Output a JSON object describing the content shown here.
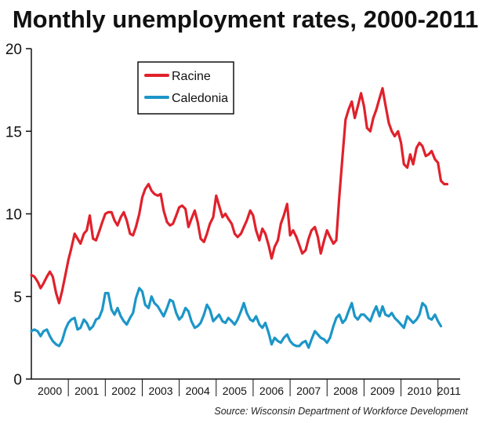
{
  "chart_data": {
    "type": "line",
    "title": "Monthly unemployment rates, 2000-2011",
    "source": "Source: Wisconsin Department of Workforce Development",
    "ylim": [
      0,
      20
    ],
    "yticks": [
      0,
      5,
      10,
      15,
      20
    ],
    "xlim": [
      2000,
      2011.6
    ],
    "year_labels": [
      "2000",
      "2001",
      "2002",
      "2003",
      "2004",
      "2005",
      "2006",
      "2007",
      "2008",
      "2009",
      "2010",
      "2011"
    ],
    "grid": false,
    "legend": "top-left",
    "series": [
      {
        "name": "Racine",
        "color": "#e0212b",
        "points": [
          [
            2000.0,
            6.3
          ],
          [
            2000.08,
            6.2
          ],
          [
            2000.17,
            5.9
          ],
          [
            2000.25,
            5.5
          ],
          [
            2000.33,
            5.8
          ],
          [
            2000.42,
            6.2
          ],
          [
            2000.5,
            6.5
          ],
          [
            2000.58,
            6.2
          ],
          [
            2000.67,
            5.2
          ],
          [
            2000.75,
            4.6
          ],
          [
            2000.83,
            5.3
          ],
          [
            2000.92,
            6.3
          ],
          [
            2001.0,
            7.2
          ],
          [
            2001.08,
            7.9
          ],
          [
            2001.17,
            8.8
          ],
          [
            2001.25,
            8.5
          ],
          [
            2001.33,
            8.2
          ],
          [
            2001.42,
            8.8
          ],
          [
            2001.5,
            9.0
          ],
          [
            2001.58,
            9.9
          ],
          [
            2001.67,
            8.5
          ],
          [
            2001.75,
            8.4
          ],
          [
            2001.83,
            8.9
          ],
          [
            2001.92,
            9.5
          ],
          [
            2002.0,
            10.0
          ],
          [
            2002.08,
            10.1
          ],
          [
            2002.17,
            10.1
          ],
          [
            2002.25,
            9.6
          ],
          [
            2002.33,
            9.3
          ],
          [
            2002.42,
            9.8
          ],
          [
            2002.5,
            10.1
          ],
          [
            2002.58,
            9.6
          ],
          [
            2002.67,
            8.8
          ],
          [
            2002.75,
            8.7
          ],
          [
            2002.83,
            9.2
          ],
          [
            2002.92,
            10.0
          ],
          [
            2003.0,
            11.0
          ],
          [
            2003.08,
            11.5
          ],
          [
            2003.17,
            11.8
          ],
          [
            2003.25,
            11.4
          ],
          [
            2003.33,
            11.2
          ],
          [
            2003.42,
            11.1
          ],
          [
            2003.5,
            11.2
          ],
          [
            2003.58,
            10.2
          ],
          [
            2003.67,
            9.5
          ],
          [
            2003.75,
            9.3
          ],
          [
            2003.83,
            9.4
          ],
          [
            2003.92,
            9.9
          ],
          [
            2004.0,
            10.4
          ],
          [
            2004.08,
            10.5
          ],
          [
            2004.17,
            10.3
          ],
          [
            2004.25,
            9.2
          ],
          [
            2004.33,
            9.7
          ],
          [
            2004.42,
            10.2
          ],
          [
            2004.5,
            9.5
          ],
          [
            2004.58,
            8.5
          ],
          [
            2004.67,
            8.3
          ],
          [
            2004.75,
            8.8
          ],
          [
            2004.83,
            9.4
          ],
          [
            2004.92,
            9.8
          ],
          [
            2005.0,
            11.1
          ],
          [
            2005.08,
            10.5
          ],
          [
            2005.17,
            9.8
          ],
          [
            2005.25,
            10.0
          ],
          [
            2005.33,
            9.7
          ],
          [
            2005.42,
            9.4
          ],
          [
            2005.5,
            8.8
          ],
          [
            2005.58,
            8.6
          ],
          [
            2005.67,
            8.8
          ],
          [
            2005.75,
            9.2
          ],
          [
            2005.83,
            9.6
          ],
          [
            2005.92,
            10.2
          ],
          [
            2006.0,
            9.9
          ],
          [
            2006.08,
            9.0
          ],
          [
            2006.17,
            8.4
          ],
          [
            2006.25,
            9.1
          ],
          [
            2006.33,
            8.8
          ],
          [
            2006.42,
            8.1
          ],
          [
            2006.5,
            7.3
          ],
          [
            2006.58,
            8.0
          ],
          [
            2006.67,
            8.4
          ],
          [
            2006.75,
            9.4
          ],
          [
            2006.83,
            9.9
          ],
          [
            2006.92,
            10.6
          ],
          [
            2007.0,
            8.7
          ],
          [
            2007.08,
            9.0
          ],
          [
            2007.17,
            8.6
          ],
          [
            2007.25,
            8.1
          ],
          [
            2007.33,
            7.6
          ],
          [
            2007.42,
            7.8
          ],
          [
            2007.5,
            8.5
          ],
          [
            2007.58,
            9.0
          ],
          [
            2007.67,
            9.2
          ],
          [
            2007.75,
            8.6
          ],
          [
            2007.83,
            7.6
          ],
          [
            2007.92,
            8.4
          ],
          [
            2008.0,
            9.0
          ],
          [
            2008.08,
            8.6
          ],
          [
            2008.17,
            8.2
          ],
          [
            2008.25,
            8.4
          ],
          [
            2008.33,
            11.0
          ],
          [
            2008.42,
            13.5
          ],
          [
            2008.5,
            15.7
          ],
          [
            2008.58,
            16.3
          ],
          [
            2008.67,
            16.8
          ],
          [
            2008.75,
            15.8
          ],
          [
            2008.83,
            16.5
          ],
          [
            2008.92,
            17.3
          ],
          [
            2009.0,
            16.5
          ],
          [
            2009.08,
            15.2
          ],
          [
            2009.17,
            15.0
          ],
          [
            2009.25,
            15.8
          ],
          [
            2009.33,
            16.3
          ],
          [
            2009.42,
            17.0
          ],
          [
            2009.5,
            17.6
          ],
          [
            2009.58,
            16.6
          ],
          [
            2009.67,
            15.5
          ],
          [
            2009.75,
            15.0
          ],
          [
            2009.83,
            14.7
          ],
          [
            2009.92,
            15.0
          ],
          [
            2010.0,
            14.3
          ],
          [
            2010.08,
            13.0
          ],
          [
            2010.17,
            12.8
          ],
          [
            2010.25,
            13.6
          ],
          [
            2010.33,
            13.0
          ],
          [
            2010.42,
            14.0
          ],
          [
            2010.5,
            14.3
          ],
          [
            2010.58,
            14.1
          ],
          [
            2010.67,
            13.5
          ],
          [
            2010.75,
            13.6
          ],
          [
            2010.83,
            13.8
          ],
          [
            2010.92,
            13.3
          ],
          [
            2011.0,
            13.1
          ],
          [
            2011.08,
            12.0
          ],
          [
            2011.17,
            11.8
          ],
          [
            2011.25,
            11.8
          ]
        ]
      },
      {
        "name": "Caledonia",
        "color": "#1c96c8",
        "points": [
          [
            2000.0,
            2.9
          ],
          [
            2000.08,
            3.0
          ],
          [
            2000.17,
            2.9
          ],
          [
            2000.25,
            2.6
          ],
          [
            2000.33,
            2.9
          ],
          [
            2000.42,
            3.0
          ],
          [
            2000.5,
            2.6
          ],
          [
            2000.58,
            2.3
          ],
          [
            2000.67,
            2.1
          ],
          [
            2000.75,
            2.0
          ],
          [
            2000.83,
            2.3
          ],
          [
            2000.92,
            3.0
          ],
          [
            2001.0,
            3.4
          ],
          [
            2001.08,
            3.6
          ],
          [
            2001.17,
            3.7
          ],
          [
            2001.25,
            3.0
          ],
          [
            2001.33,
            3.1
          ],
          [
            2001.42,
            3.6
          ],
          [
            2001.5,
            3.4
          ],
          [
            2001.58,
            3.0
          ],
          [
            2001.67,
            3.2
          ],
          [
            2001.75,
            3.6
          ],
          [
            2001.83,
            3.7
          ],
          [
            2001.92,
            4.2
          ],
          [
            2002.0,
            5.2
          ],
          [
            2002.08,
            5.2
          ],
          [
            2002.17,
            4.2
          ],
          [
            2002.25,
            3.9
          ],
          [
            2002.33,
            4.3
          ],
          [
            2002.42,
            3.8
          ],
          [
            2002.5,
            3.5
          ],
          [
            2002.58,
            3.3
          ],
          [
            2002.67,
            3.7
          ],
          [
            2002.75,
            4.0
          ],
          [
            2002.83,
            4.9
          ],
          [
            2002.92,
            5.5
          ],
          [
            2003.0,
            5.3
          ],
          [
            2003.08,
            4.5
          ],
          [
            2003.17,
            4.3
          ],
          [
            2003.25,
            5.0
          ],
          [
            2003.33,
            4.6
          ],
          [
            2003.42,
            4.4
          ],
          [
            2003.5,
            4.1
          ],
          [
            2003.58,
            3.8
          ],
          [
            2003.67,
            4.3
          ],
          [
            2003.75,
            4.8
          ],
          [
            2003.83,
            4.7
          ],
          [
            2003.92,
            4.0
          ],
          [
            2004.0,
            3.6
          ],
          [
            2004.08,
            3.8
          ],
          [
            2004.17,
            4.3
          ],
          [
            2004.25,
            4.1
          ],
          [
            2004.33,
            3.5
          ],
          [
            2004.42,
            3.1
          ],
          [
            2004.5,
            3.2
          ],
          [
            2004.58,
            3.4
          ],
          [
            2004.67,
            3.9
          ],
          [
            2004.75,
            4.5
          ],
          [
            2004.83,
            4.2
          ],
          [
            2004.92,
            3.5
          ],
          [
            2005.0,
            3.7
          ],
          [
            2005.08,
            3.9
          ],
          [
            2005.17,
            3.5
          ],
          [
            2005.25,
            3.4
          ],
          [
            2005.33,
            3.7
          ],
          [
            2005.42,
            3.5
          ],
          [
            2005.5,
            3.3
          ],
          [
            2005.58,
            3.6
          ],
          [
            2005.67,
            4.1
          ],
          [
            2005.75,
            4.6
          ],
          [
            2005.83,
            4.0
          ],
          [
            2005.92,
            3.6
          ],
          [
            2006.0,
            3.5
          ],
          [
            2006.08,
            3.8
          ],
          [
            2006.17,
            3.3
          ],
          [
            2006.25,
            3.1
          ],
          [
            2006.33,
            3.4
          ],
          [
            2006.42,
            2.8
          ],
          [
            2006.5,
            2.1
          ],
          [
            2006.58,
            2.5
          ],
          [
            2006.67,
            2.3
          ],
          [
            2006.75,
            2.2
          ],
          [
            2006.83,
            2.5
          ],
          [
            2006.92,
            2.7
          ],
          [
            2007.0,
            2.3
          ],
          [
            2007.08,
            2.1
          ],
          [
            2007.17,
            2.0
          ],
          [
            2007.25,
            2.0
          ],
          [
            2007.33,
            2.2
          ],
          [
            2007.42,
            2.3
          ],
          [
            2007.5,
            1.9
          ],
          [
            2007.58,
            2.4
          ],
          [
            2007.67,
            2.9
          ],
          [
            2007.75,
            2.7
          ],
          [
            2007.83,
            2.5
          ],
          [
            2007.92,
            2.4
          ],
          [
            2008.0,
            2.2
          ],
          [
            2008.08,
            2.5
          ],
          [
            2008.17,
            3.2
          ],
          [
            2008.25,
            3.7
          ],
          [
            2008.33,
            3.9
          ],
          [
            2008.42,
            3.4
          ],
          [
            2008.5,
            3.6
          ],
          [
            2008.58,
            4.1
          ],
          [
            2008.67,
            4.6
          ],
          [
            2008.75,
            3.8
          ],
          [
            2008.83,
            3.6
          ],
          [
            2008.92,
            3.9
          ],
          [
            2009.0,
            3.9
          ],
          [
            2009.08,
            3.7
          ],
          [
            2009.17,
            3.5
          ],
          [
            2009.25,
            4.0
          ],
          [
            2009.33,
            4.4
          ],
          [
            2009.42,
            3.8
          ],
          [
            2009.5,
            4.4
          ],
          [
            2009.58,
            3.9
          ],
          [
            2009.67,
            3.8
          ],
          [
            2009.75,
            4.0
          ],
          [
            2009.83,
            3.7
          ],
          [
            2009.92,
            3.5
          ],
          [
            2010.0,
            3.3
          ],
          [
            2010.08,
            3.1
          ],
          [
            2010.17,
            3.8
          ],
          [
            2010.25,
            3.6
          ],
          [
            2010.33,
            3.4
          ],
          [
            2010.42,
            3.6
          ],
          [
            2010.5,
            3.9
          ],
          [
            2010.58,
            4.6
          ],
          [
            2010.67,
            4.4
          ],
          [
            2010.75,
            3.7
          ],
          [
            2010.83,
            3.6
          ],
          [
            2010.92,
            3.9
          ],
          [
            2011.0,
            3.5
          ],
          [
            2011.08,
            3.2
          ]
        ]
      }
    ]
  }
}
